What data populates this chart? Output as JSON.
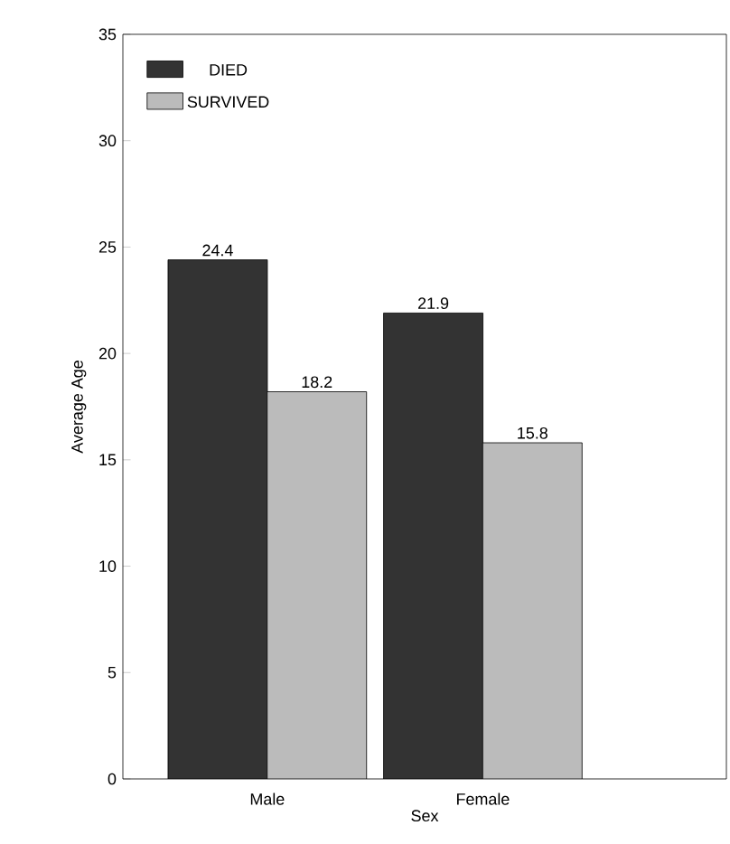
{
  "chart_data": {
    "type": "bar",
    "xlabel": "Sex",
    "ylabel": "Average Age",
    "categories": [
      "Male",
      "Female"
    ],
    "series": [
      {
        "name": "DIED",
        "color": "#333333",
        "values": [
          24.4,
          21.9
        ],
        "value_labels": [
          "24.4",
          "21.9"
        ]
      },
      {
        "name": "SURVIVED",
        "color": "#bbbbbb",
        "values": [
          18.2,
          15.8
        ],
        "value_labels": [
          "18.2",
          "15.8"
        ]
      }
    ],
    "ylim": [
      0,
      35
    ],
    "yticks": [
      0,
      5,
      10,
      15,
      20,
      25,
      30,
      35
    ],
    "grid": false,
    "legend": "top left"
  }
}
